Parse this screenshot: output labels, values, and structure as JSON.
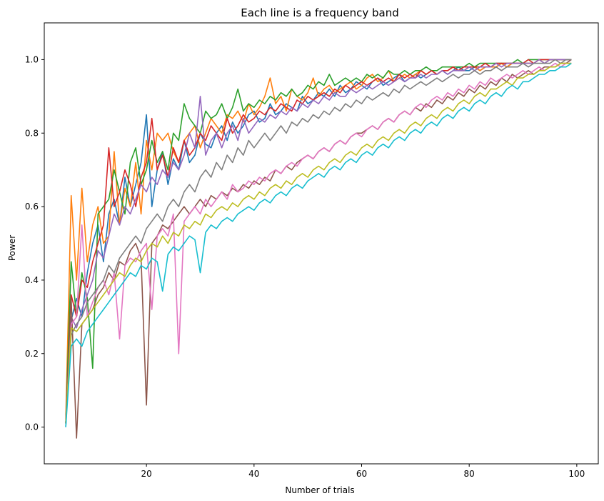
{
  "chart_data": {
    "type": "line",
    "title": "Each line is a frequency band",
    "xlabel": "Number of trials",
    "ylabel": "Power",
    "xlim": [
      1,
      104
    ],
    "ylim": [
      -0.1,
      1.1
    ],
    "xticks": [
      20,
      40,
      60,
      80,
      100
    ],
    "yticks": [
      0.0,
      0.2,
      0.4,
      0.6,
      0.8,
      1.0
    ],
    "xtick_labels": [
      "20",
      "40",
      "60",
      "80",
      "100"
    ],
    "ytick_labels": [
      "0.0",
      "0.2",
      "0.4",
      "0.6",
      "0.8",
      "1.0"
    ],
    "grid": false,
    "legend": "none",
    "x": [
      5,
      6,
      7,
      8,
      9,
      10,
      11,
      12,
      13,
      14,
      15,
      16,
      17,
      18,
      19,
      20,
      21,
      22,
      23,
      24,
      25,
      26,
      27,
      28,
      29,
      30,
      31,
      32,
      33,
      34,
      35,
      36,
      37,
      38,
      39,
      40,
      41,
      42,
      43,
      44,
      45,
      46,
      47,
      48,
      49,
      50,
      51,
      52,
      53,
      54,
      55,
      56,
      57,
      58,
      59,
      60,
      61,
      62,
      63,
      64,
      65,
      66,
      67,
      68,
      69,
      70,
      71,
      72,
      73,
      74,
      75,
      76,
      77,
      78,
      79,
      80,
      81,
      82,
      83,
      84,
      85,
      86,
      87,
      88,
      89,
      90,
      91,
      92,
      93,
      94,
      95,
      96,
      97,
      98,
      99
    ],
    "series": [
      {
        "color": "#1f77b4",
        "values": [
          0.0,
          0.29,
          0.35,
          0.3,
          0.42,
          0.5,
          0.55,
          0.45,
          0.58,
          0.62,
          0.55,
          0.68,
          0.6,
          0.66,
          0.72,
          0.85,
          0.6,
          0.7,
          0.75,
          0.66,
          0.73,
          0.7,
          0.78,
          0.72,
          0.74,
          0.8,
          0.77,
          0.76,
          0.8,
          0.82,
          0.78,
          0.83,
          0.8,
          0.82,
          0.85,
          0.86,
          0.83,
          0.84,
          0.88,
          0.85,
          0.86,
          0.88,
          0.87,
          0.86,
          0.9,
          0.88,
          0.89,
          0.91,
          0.9,
          0.92,
          0.9,
          0.93,
          0.91,
          0.92,
          0.94,
          0.93,
          0.92,
          0.94,
          0.95,
          0.93,
          0.94,
          0.95,
          0.96,
          0.94,
          0.95,
          0.96,
          0.95,
          0.96,
          0.97,
          0.96,
          0.97,
          0.96,
          0.97,
          0.98,
          0.97,
          0.97,
          0.98,
          0.97,
          0.98,
          0.98,
          0.98,
          0.99,
          0.98,
          0.99,
          0.99,
          0.99,
          0.99,
          0.99,
          1.0,
          0.99,
          1.0,
          1.0,
          1.0,
          1.0,
          1.0
        ]
      },
      {
        "color": "#ff7f0e",
        "values": [
          0.02,
          0.63,
          0.4,
          0.65,
          0.45,
          0.55,
          0.6,
          0.5,
          0.52,
          0.75,
          0.55,
          0.65,
          0.6,
          0.72,
          0.58,
          0.78,
          0.7,
          0.8,
          0.78,
          0.8,
          0.75,
          0.72,
          0.78,
          0.8,
          0.82,
          0.76,
          0.8,
          0.84,
          0.82,
          0.8,
          0.85,
          0.84,
          0.86,
          0.83,
          0.88,
          0.85,
          0.87,
          0.9,
          0.95,
          0.88,
          0.9,
          0.86,
          0.92,
          0.9,
          0.89,
          0.91,
          0.95,
          0.9,
          0.92,
          0.93,
          0.91,
          0.92,
          0.93,
          0.94,
          0.92,
          0.93,
          0.95,
          0.96,
          0.94,
          0.95,
          0.97,
          0.94,
          0.95,
          0.96,
          0.95,
          0.96,
          0.97,
          0.96,
          0.97,
          0.96,
          0.97,
          0.97,
          0.98,
          0.97,
          0.97,
          0.98,
          0.98,
          0.97,
          0.98,
          0.98,
          0.98,
          0.99,
          0.98,
          0.99,
          0.99,
          0.99,
          0.99,
          0.99,
          1.0,
          0.99,
          1.0,
          1.0,
          1.0,
          1.0,
          1.0
        ]
      },
      {
        "color": "#2ca02c",
        "values": [
          0.01,
          0.45,
          0.3,
          0.42,
          0.35,
          0.16,
          0.58,
          0.6,
          0.62,
          0.7,
          0.64,
          0.58,
          0.72,
          0.76,
          0.66,
          0.7,
          0.78,
          0.72,
          0.75,
          0.7,
          0.8,
          0.78,
          0.88,
          0.84,
          0.82,
          0.8,
          0.86,
          0.84,
          0.85,
          0.88,
          0.84,
          0.87,
          0.92,
          0.86,
          0.88,
          0.87,
          0.89,
          0.88,
          0.9,
          0.89,
          0.91,
          0.9,
          0.92,
          0.9,
          0.91,
          0.93,
          0.92,
          0.94,
          0.93,
          0.96,
          0.93,
          0.94,
          0.95,
          0.94,
          0.95,
          0.94,
          0.96,
          0.95,
          0.96,
          0.95,
          0.97,
          0.96,
          0.96,
          0.97,
          0.96,
          0.97,
          0.97,
          0.98,
          0.97,
          0.97,
          0.98,
          0.98,
          0.98,
          0.98,
          0.98,
          0.99,
          0.98,
          0.99,
          0.99,
          0.99,
          0.99,
          0.99,
          0.99,
          0.99,
          1.0,
          0.99,
          1.0,
          1.0,
          1.0,
          1.0,
          1.0,
          1.0,
          1.0,
          1.0,
          1.0
        ]
      },
      {
        "color": "#d62728",
        "values": [
          0.01,
          0.36,
          0.3,
          0.4,
          0.38,
          0.45,
          0.5,
          0.55,
          0.76,
          0.6,
          0.64,
          0.7,
          0.66,
          0.6,
          0.68,
          0.72,
          0.84,
          0.7,
          0.74,
          0.68,
          0.76,
          0.72,
          0.78,
          0.74,
          0.76,
          0.8,
          0.78,
          0.82,
          0.8,
          0.78,
          0.84,
          0.8,
          0.82,
          0.85,
          0.83,
          0.84,
          0.86,
          0.85,
          0.87,
          0.86,
          0.88,
          0.87,
          0.86,
          0.89,
          0.88,
          0.9,
          0.89,
          0.9,
          0.91,
          0.9,
          0.92,
          0.91,
          0.93,
          0.92,
          0.93,
          0.94,
          0.93,
          0.94,
          0.95,
          0.94,
          0.95,
          0.94,
          0.96,
          0.95,
          0.96,
          0.95,
          0.97,
          0.96,
          0.97,
          0.96,
          0.97,
          0.97,
          0.98,
          0.97,
          0.98,
          0.98,
          0.98,
          0.98,
          0.99,
          0.98,
          0.99,
          0.99,
          0.99,
          0.99,
          0.99,
          0.99,
          1.0,
          0.99,
          1.0,
          1.0,
          1.0,
          1.0,
          1.0,
          1.0,
          1.0
        ]
      },
      {
        "color": "#9467bd",
        "values": [
          0.01,
          0.3,
          0.27,
          0.32,
          0.36,
          0.4,
          0.48,
          0.46,
          0.52,
          0.58,
          0.55,
          0.6,
          0.58,
          0.62,
          0.66,
          0.64,
          0.68,
          0.66,
          0.7,
          0.68,
          0.72,
          0.7,
          0.74,
          0.8,
          0.76,
          0.9,
          0.74,
          0.78,
          0.8,
          0.76,
          0.8,
          0.82,
          0.78,
          0.84,
          0.8,
          0.82,
          0.84,
          0.83,
          0.85,
          0.84,
          0.86,
          0.85,
          0.87,
          0.86,
          0.88,
          0.87,
          0.89,
          0.88,
          0.9,
          0.89,
          0.91,
          0.9,
          0.9,
          0.92,
          0.91,
          0.92,
          0.93,
          0.92,
          0.93,
          0.94,
          0.93,
          0.94,
          0.95,
          0.94,
          0.95,
          0.95,
          0.96,
          0.95,
          0.96,
          0.96,
          0.97,
          0.96,
          0.97,
          0.97,
          0.97,
          0.98,
          0.97,
          0.98,
          0.98,
          0.98,
          0.99,
          0.98,
          0.99,
          0.99,
          0.99,
          0.99,
          0.99,
          0.99,
          1.0,
          0.99,
          1.0,
          1.0,
          1.0,
          1.0,
          1.0
        ]
      },
      {
        "color": "#8c564b",
        "values": [
          0.01,
          0.35,
          -0.03,
          0.28,
          0.3,
          0.32,
          0.36,
          0.38,
          0.42,
          0.4,
          0.45,
          0.44,
          0.48,
          0.5,
          0.46,
          0.06,
          0.5,
          0.52,
          0.55,
          0.54,
          0.56,
          0.58,
          0.6,
          0.58,
          0.6,
          0.62,
          0.6,
          0.63,
          0.62,
          0.64,
          0.63,
          0.65,
          0.64,
          0.66,
          0.65,
          0.67,
          0.66,
          0.68,
          0.67,
          0.7,
          0.69,
          0.71,
          0.7,
          0.72,
          0.73,
          0.74,
          0.73,
          0.75,
          0.76,
          0.75,
          0.77,
          0.78,
          0.77,
          0.79,
          0.8,
          0.8,
          0.81,
          0.82,
          0.81,
          0.83,
          0.84,
          0.83,
          0.85,
          0.86,
          0.85,
          0.87,
          0.86,
          0.88,
          0.87,
          0.89,
          0.88,
          0.9,
          0.89,
          0.91,
          0.9,
          0.92,
          0.91,
          0.93,
          0.92,
          0.94,
          0.93,
          0.95,
          0.94,
          0.96,
          0.95,
          0.96,
          0.97,
          0.96,
          0.97,
          0.98,
          0.98,
          0.98,
          0.99,
          0.99,
          1.0
        ]
      },
      {
        "color": "#e377c2",
        "values": [
          0.01,
          0.28,
          0.3,
          0.55,
          0.3,
          0.34,
          0.38,
          0.4,
          0.36,
          0.42,
          0.24,
          0.44,
          0.46,
          0.45,
          0.48,
          0.5,
          0.32,
          0.52,
          0.54,
          0.52,
          0.58,
          0.2,
          0.56,
          0.58,
          0.6,
          0.58,
          0.62,
          0.6,
          0.62,
          0.64,
          0.62,
          0.66,
          0.64,
          0.65,
          0.67,
          0.66,
          0.68,
          0.67,
          0.69,
          0.7,
          0.69,
          0.71,
          0.72,
          0.71,
          0.73,
          0.74,
          0.73,
          0.75,
          0.76,
          0.75,
          0.77,
          0.78,
          0.77,
          0.79,
          0.8,
          0.79,
          0.81,
          0.82,
          0.81,
          0.83,
          0.84,
          0.83,
          0.85,
          0.86,
          0.85,
          0.87,
          0.88,
          0.87,
          0.89,
          0.9,
          0.89,
          0.91,
          0.9,
          0.92,
          0.91,
          0.93,
          0.92,
          0.94,
          0.93,
          0.95,
          0.94,
          0.95,
          0.96,
          0.95,
          0.96,
          0.97,
          0.96,
          0.97,
          0.98,
          0.97,
          0.98,
          0.99,
          0.98,
          0.99,
          0.99
        ]
      },
      {
        "color": "#7f7f7f",
        "values": [
          0.01,
          0.25,
          0.28,
          0.3,
          0.34,
          0.36,
          0.38,
          0.4,
          0.44,
          0.42,
          0.46,
          0.48,
          0.5,
          0.52,
          0.5,
          0.54,
          0.56,
          0.58,
          0.56,
          0.6,
          0.62,
          0.6,
          0.64,
          0.66,
          0.64,
          0.68,
          0.7,
          0.68,
          0.72,
          0.7,
          0.74,
          0.72,
          0.76,
          0.74,
          0.78,
          0.76,
          0.78,
          0.8,
          0.78,
          0.8,
          0.82,
          0.8,
          0.83,
          0.82,
          0.84,
          0.83,
          0.85,
          0.84,
          0.86,
          0.85,
          0.87,
          0.86,
          0.88,
          0.87,
          0.89,
          0.88,
          0.9,
          0.89,
          0.9,
          0.91,
          0.9,
          0.92,
          0.91,
          0.93,
          0.92,
          0.93,
          0.94,
          0.93,
          0.94,
          0.95,
          0.94,
          0.95,
          0.96,
          0.95,
          0.96,
          0.96,
          0.97,
          0.96,
          0.97,
          0.97,
          0.98,
          0.97,
          0.98,
          0.98,
          0.98,
          0.99,
          0.98,
          0.99,
          0.99,
          0.99,
          0.99,
          1.0,
          0.99,
          1.0,
          1.0
        ]
      },
      {
        "color": "#bcbd22",
        "values": [
          0.01,
          0.27,
          0.26,
          0.28,
          0.3,
          0.32,
          0.34,
          0.36,
          0.38,
          0.4,
          0.42,
          0.41,
          0.44,
          0.46,
          0.45,
          0.48,
          0.5,
          0.49,
          0.52,
          0.5,
          0.53,
          0.52,
          0.55,
          0.54,
          0.56,
          0.55,
          0.58,
          0.57,
          0.59,
          0.6,
          0.59,
          0.61,
          0.6,
          0.62,
          0.63,
          0.62,
          0.64,
          0.63,
          0.65,
          0.66,
          0.65,
          0.67,
          0.66,
          0.68,
          0.69,
          0.68,
          0.7,
          0.71,
          0.7,
          0.72,
          0.73,
          0.72,
          0.74,
          0.75,
          0.74,
          0.76,
          0.77,
          0.76,
          0.78,
          0.79,
          0.78,
          0.8,
          0.81,
          0.8,
          0.82,
          0.83,
          0.82,
          0.84,
          0.85,
          0.84,
          0.86,
          0.87,
          0.86,
          0.88,
          0.89,
          0.88,
          0.9,
          0.91,
          0.9,
          0.92,
          0.92,
          0.93,
          0.94,
          0.93,
          0.95,
          0.95,
          0.96,
          0.96,
          0.97,
          0.97,
          0.98,
          0.98,
          0.99,
          0.99,
          0.99
        ]
      },
      {
        "color": "#17becf",
        "values": [
          0.0,
          0.22,
          0.24,
          0.22,
          0.26,
          0.28,
          0.3,
          0.32,
          0.34,
          0.36,
          0.38,
          0.4,
          0.42,
          0.41,
          0.44,
          0.43,
          0.46,
          0.45,
          0.37,
          0.47,
          0.49,
          0.48,
          0.5,
          0.52,
          0.51,
          0.42,
          0.53,
          0.55,
          0.54,
          0.56,
          0.57,
          0.56,
          0.58,
          0.59,
          0.6,
          0.59,
          0.61,
          0.62,
          0.61,
          0.63,
          0.64,
          0.63,
          0.65,
          0.66,
          0.65,
          0.67,
          0.68,
          0.69,
          0.68,
          0.7,
          0.71,
          0.7,
          0.72,
          0.73,
          0.72,
          0.74,
          0.75,
          0.74,
          0.76,
          0.77,
          0.76,
          0.78,
          0.79,
          0.78,
          0.8,
          0.81,
          0.8,
          0.82,
          0.83,
          0.82,
          0.84,
          0.85,
          0.84,
          0.86,
          0.87,
          0.86,
          0.88,
          0.89,
          0.88,
          0.9,
          0.91,
          0.9,
          0.92,
          0.93,
          0.92,
          0.94,
          0.94,
          0.95,
          0.96,
          0.96,
          0.97,
          0.97,
          0.98,
          0.98,
          0.99
        ]
      }
    ]
  }
}
